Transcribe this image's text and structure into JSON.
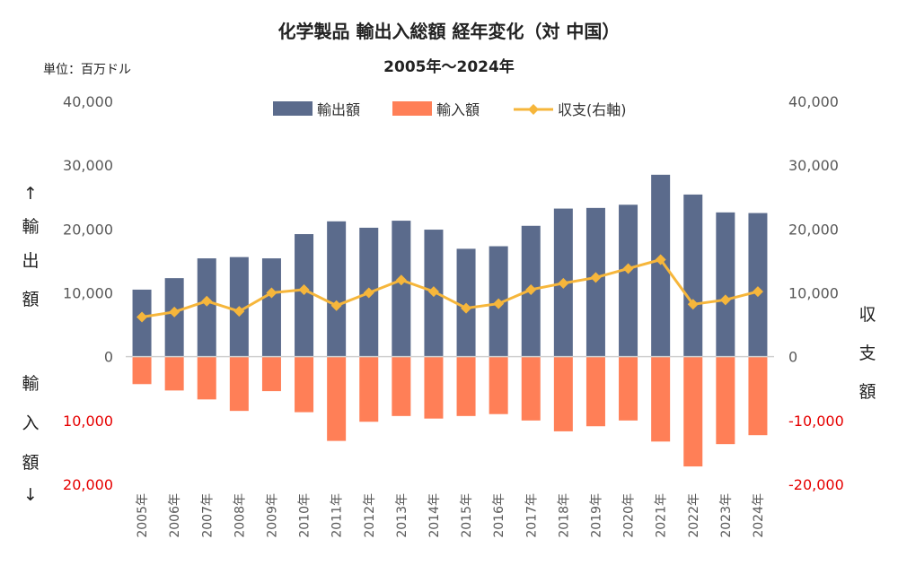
{
  "chart_data": {
    "type": "bar",
    "title": "化学製品 輸出入総額 経年変化（対 中国）",
    "subtitle": "2005年～2024年",
    "unit_label": "単位：百万ドル",
    "categories": [
      "2005年",
      "2006年",
      "2007年",
      "2008年",
      "2009年",
      "2010年",
      "2011年",
      "2012年",
      "2013年",
      "2014年",
      "2015年",
      "2016年",
      "2017年",
      "2018年",
      "2019年",
      "2020年",
      "2021年",
      "2022年",
      "2023年",
      "2024年"
    ],
    "series": [
      {
        "name": "輸出額",
        "type": "bar",
        "color": "#5b6b8c",
        "values": [
          10500,
          12300,
          15400,
          15600,
          15400,
          19200,
          21200,
          20200,
          21300,
          19900,
          16900,
          17300,
          20500,
          23200,
          23300,
          23800,
          28500,
          25400,
          22600,
          22500
        ]
      },
      {
        "name": "輸入額",
        "type": "bar",
        "color": "#ff7f57",
        "values": [
          -4300,
          -5300,
          -6700,
          -8500,
          -5400,
          -8700,
          -13200,
          -10200,
          -9300,
          -9700,
          -9300,
          -9000,
          -10000,
          -11700,
          -10900,
          -10000,
          -13300,
          -17200,
          -13700,
          -12300
        ]
      },
      {
        "name": "収支(右軸)",
        "type": "line",
        "color": "#f6b63b",
        "values": [
          6200,
          7000,
          8700,
          7100,
          10000,
          10500,
          8000,
          10000,
          12000,
          10200,
          7600,
          8300,
          10500,
          11500,
          12400,
          13800,
          15200,
          8200,
          8900,
          10200
        ]
      }
    ],
    "y_left": {
      "label_top": [
        "↑",
        "輸",
        "出",
        "額"
      ],
      "label_bottom": [
        "輸",
        "入",
        "額",
        "↓"
      ],
      "range": [
        -20000,
        40000
      ],
      "ticks": [
        {
          "value": 40000,
          "label": "40,000"
        },
        {
          "value": 30000,
          "label": "30,000"
        },
        {
          "value": 20000,
          "label": "20,000"
        },
        {
          "value": 10000,
          "label": "10,000"
        },
        {
          "value": 0,
          "label": "0"
        },
        {
          "value": -10000,
          "label": "10,000"
        },
        {
          "value": -20000,
          "label": "20,000"
        }
      ]
    },
    "y_right": {
      "label": [
        "収",
        "支",
        "額"
      ],
      "range": [
        -20000,
        40000
      ],
      "ticks": [
        {
          "value": 40000,
          "label": "40,000"
        },
        {
          "value": 30000,
          "label": "30,000"
        },
        {
          "value": 20000,
          "label": "20,000"
        },
        {
          "value": 10000,
          "label": "10,000"
        },
        {
          "value": 0,
          "label": "0"
        },
        {
          "value": -10000,
          "label": "-10,000"
        },
        {
          "value": -20000,
          "label": "-20,000"
        }
      ]
    },
    "negative_tick_color": "#e60000",
    "grid": false,
    "legend_position": "top-center"
  }
}
